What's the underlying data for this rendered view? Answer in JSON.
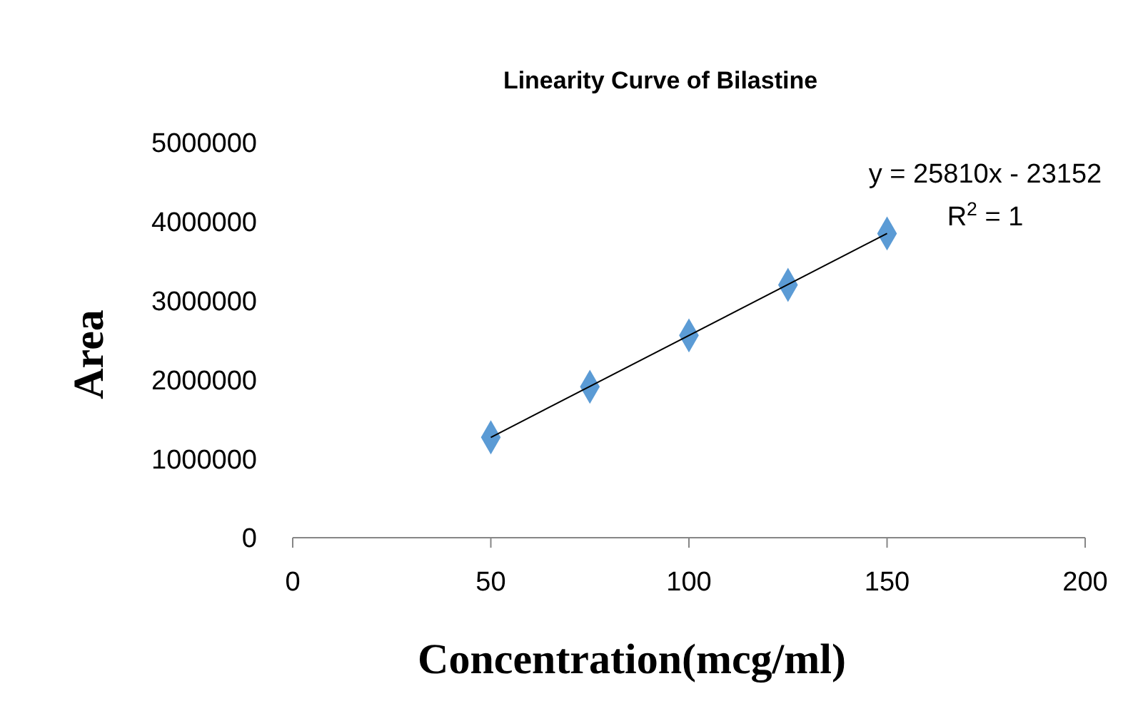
{
  "chart_data": {
    "type": "scatter",
    "title": "Linearity Curve of Bilastine",
    "xlabel": "Concentration(mcg/ml)",
    "ylabel": "Area",
    "x": [
      50,
      75,
      100,
      125,
      150
    ],
    "series": [
      {
        "color": "#5b9bd5",
        "marker": "diamond",
        "values": [
          1270000,
          1910000,
          2560000,
          3200000,
          3850000
        ]
      },
      {
        "type": "line",
        "color": "#000000",
        "marker": "none",
        "x": [
          50,
          150
        ],
        "values": [
          1270000,
          3850000
        ]
      }
    ],
    "xlim": [
      0,
      200
    ],
    "xticks": [
      0,
      50,
      100,
      150,
      200
    ],
    "ylim": [
      0,
      5000000
    ],
    "yticks": [
      0,
      1000000,
      2000000,
      3000000,
      4000000,
      5000000
    ],
    "grid": false,
    "annotations": [
      "y = 25810x - 23152",
      "R$^{2}$ = 1"
    ]
  }
}
